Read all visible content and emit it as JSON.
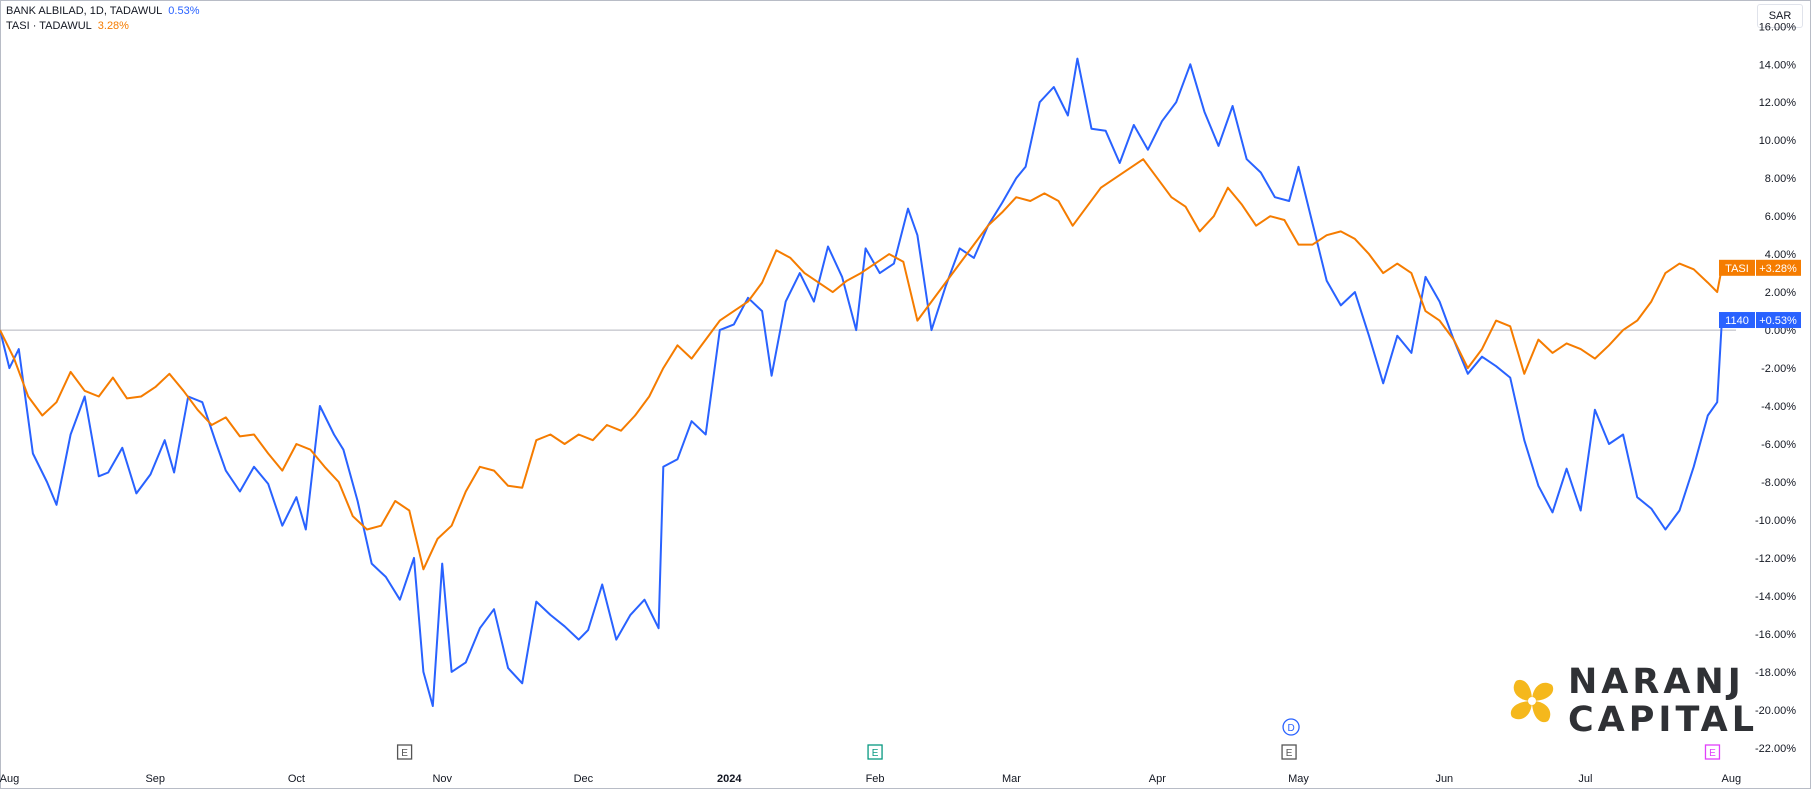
{
  "legend": {
    "series1_label": "BANK ALBILAD, 1D, TADAWUL",
    "series1_value": "0.53%",
    "series2_label": "TASI · TADAWUL",
    "series2_value": "3.28%"
  },
  "currency": "SAR",
  "brand": {
    "line1": "NARANJ",
    "line2": "CAPITAL"
  },
  "price_tags": {
    "tasi_name": "TASI",
    "tasi_value": "+3.28%",
    "bank_name": "1140",
    "bank_value": "+0.53%"
  },
  "event_markers": [
    {
      "label": "E",
      "date": "2023-10-24",
      "color": "#555555"
    },
    {
      "label": "E",
      "date": "2024-02-01",
      "color": "#089981"
    },
    {
      "label": "E",
      "date": "2024-04-29",
      "color": "#555555"
    },
    {
      "label": "D",
      "date": "2024-04-29",
      "color": "#2962ff"
    },
    {
      "label": "E",
      "date": "2024-07-28",
      "color": "#e040fb"
    }
  ],
  "colors": {
    "bank": "#2962ff",
    "tasi": "#f57c00",
    "zero_line": "#b2b5be"
  },
  "chart_data": {
    "type": "line",
    "xlabel": "",
    "ylabel": "",
    "ylim": [
      -23,
      17
    ],
    "y_ticks": [
      "16.00%",
      "14.00%",
      "12.00%",
      "10.00%",
      "8.00%",
      "6.00%",
      "4.00%",
      "2.00%",
      "0.00%",
      "-2.00%",
      "-4.00%",
      "-6.00%",
      "-8.00%",
      "-10.00%",
      "-12.00%",
      "-14.00%",
      "-16.00%",
      "-18.00%",
      "-20.00%",
      "-22.00%"
    ],
    "x_range": [
      "2023-07-30",
      "2024-08-02"
    ],
    "x_ticks": [
      {
        "label": "Aug",
        "date": "2023-08-01"
      },
      {
        "label": "Sep",
        "date": "2023-09-01"
      },
      {
        "label": "Oct",
        "date": "2023-10-01"
      },
      {
        "label": "Nov",
        "date": "2023-11-01"
      },
      {
        "label": "Dec",
        "date": "2023-12-01"
      },
      {
        "label": "2024",
        "date": "2024-01-01",
        "bold": true
      },
      {
        "label": "Feb",
        "date": "2024-02-01"
      },
      {
        "label": "Mar",
        "date": "2024-03-01"
      },
      {
        "label": "Apr",
        "date": "2024-04-01"
      },
      {
        "label": "May",
        "date": "2024-05-01"
      },
      {
        "label": "Jun",
        "date": "2024-06-01"
      },
      {
        "label": "Jul",
        "date": "2024-07-01"
      },
      {
        "label": "Aug",
        "date": "2024-08-01"
      }
    ],
    "grid": false,
    "series": [
      {
        "name": "BANK ALBILAD",
        "color": "#2962ff",
        "points": [
          [
            "2023-07-30",
            0.0
          ],
          [
            "2023-08-01",
            -2.0
          ],
          [
            "2023-08-03",
            -1.0
          ],
          [
            "2023-08-06",
            -6.5
          ],
          [
            "2023-08-09",
            -8.0
          ],
          [
            "2023-08-11",
            -9.2
          ],
          [
            "2023-08-14",
            -5.5
          ],
          [
            "2023-08-17",
            -3.5
          ],
          [
            "2023-08-20",
            -7.7
          ],
          [
            "2023-08-22",
            -7.5
          ],
          [
            "2023-08-25",
            -6.2
          ],
          [
            "2023-08-28",
            -8.6
          ],
          [
            "2023-08-31",
            -7.6
          ],
          [
            "2023-09-03",
            -5.8
          ],
          [
            "2023-09-05",
            -7.5
          ],
          [
            "2023-09-08",
            -3.5
          ],
          [
            "2023-09-11",
            -3.8
          ],
          [
            "2023-09-14",
            -6.0
          ],
          [
            "2023-09-16",
            -7.4
          ],
          [
            "2023-09-19",
            -8.5
          ],
          [
            "2023-09-22",
            -7.2
          ],
          [
            "2023-09-25",
            -8.1
          ],
          [
            "2023-09-28",
            -10.3
          ],
          [
            "2023-10-01",
            -8.8
          ],
          [
            "2023-10-03",
            -10.5
          ],
          [
            "2023-10-06",
            -4.0
          ],
          [
            "2023-10-09",
            -5.5
          ],
          [
            "2023-10-11",
            -6.3
          ],
          [
            "2023-10-14",
            -9.0
          ],
          [
            "2023-10-17",
            -12.3
          ],
          [
            "2023-10-20",
            -13.0
          ],
          [
            "2023-10-23",
            -14.2
          ],
          [
            "2023-10-26",
            -12.0
          ],
          [
            "2023-10-28",
            -18.0
          ],
          [
            "2023-10-30",
            -19.8
          ],
          [
            "2023-11-01",
            -12.3
          ],
          [
            "2023-11-03",
            -18.0
          ],
          [
            "2023-11-06",
            -17.5
          ],
          [
            "2023-11-09",
            -15.7
          ],
          [
            "2023-11-12",
            -14.7
          ],
          [
            "2023-11-15",
            -17.8
          ],
          [
            "2023-11-18",
            -18.6
          ],
          [
            "2023-11-21",
            -14.3
          ],
          [
            "2023-11-24",
            -15.0
          ],
          [
            "2023-11-27",
            -15.6
          ],
          [
            "2023-11-30",
            -16.3
          ],
          [
            "2023-12-02",
            -15.8
          ],
          [
            "2023-12-05",
            -13.4
          ],
          [
            "2023-12-08",
            -16.3
          ],
          [
            "2023-12-11",
            -15.0
          ],
          [
            "2023-12-14",
            -14.2
          ],
          [
            "2023-12-17",
            -15.7
          ],
          [
            "2023-12-18",
            -7.2
          ],
          [
            "2023-12-21",
            -6.8
          ],
          [
            "2023-12-24",
            -4.8
          ],
          [
            "2023-12-27",
            -5.5
          ],
          [
            "2023-12-30",
            0.0
          ],
          [
            "2024-01-02",
            0.3
          ],
          [
            "2024-01-05",
            1.7
          ],
          [
            "2024-01-08",
            1.0
          ],
          [
            "2024-01-10",
            -2.4
          ],
          [
            "2024-01-13",
            1.5
          ],
          [
            "2024-01-16",
            3.0
          ],
          [
            "2024-01-19",
            1.5
          ],
          [
            "2024-01-22",
            4.4
          ],
          [
            "2024-01-25",
            2.8
          ],
          [
            "2024-01-28",
            0.0
          ],
          [
            "2024-01-30",
            4.3
          ],
          [
            "2024-02-02",
            3.0
          ],
          [
            "2024-02-05",
            3.5
          ],
          [
            "2024-02-08",
            6.4
          ],
          [
            "2024-02-10",
            5.0
          ],
          [
            "2024-02-13",
            0.0
          ],
          [
            "2024-02-16",
            2.3
          ],
          [
            "2024-02-19",
            4.3
          ],
          [
            "2024-02-22",
            3.8
          ],
          [
            "2024-02-25",
            5.5
          ],
          [
            "2024-02-28",
            6.7
          ],
          [
            "2024-03-02",
            8.0
          ],
          [
            "2024-03-04",
            8.6
          ],
          [
            "2024-03-07",
            12.0
          ],
          [
            "2024-03-10",
            12.8
          ],
          [
            "2024-03-13",
            11.3
          ],
          [
            "2024-03-15",
            14.3
          ],
          [
            "2024-03-18",
            10.6
          ],
          [
            "2024-03-21",
            10.5
          ],
          [
            "2024-03-24",
            8.8
          ],
          [
            "2024-03-27",
            10.8
          ],
          [
            "2024-03-30",
            9.5
          ],
          [
            "2024-04-02",
            11.0
          ],
          [
            "2024-04-05",
            12.0
          ],
          [
            "2024-04-08",
            14.0
          ],
          [
            "2024-04-11",
            11.5
          ],
          [
            "2024-04-14",
            9.7
          ],
          [
            "2024-04-17",
            11.8
          ],
          [
            "2024-04-20",
            9.0
          ],
          [
            "2024-04-23",
            8.3
          ],
          [
            "2024-04-26",
            7.0
          ],
          [
            "2024-04-29",
            6.8
          ],
          [
            "2024-05-01",
            8.6
          ],
          [
            "2024-05-04",
            5.6
          ],
          [
            "2024-05-07",
            2.6
          ],
          [
            "2024-05-10",
            1.3
          ],
          [
            "2024-05-13",
            2.0
          ],
          [
            "2024-05-16",
            -0.3
          ],
          [
            "2024-05-19",
            -2.8
          ],
          [
            "2024-05-22",
            -0.3
          ],
          [
            "2024-05-25",
            -1.2
          ],
          [
            "2024-05-28",
            2.8
          ],
          [
            "2024-05-31",
            1.5
          ],
          [
            "2024-06-03",
            -0.5
          ],
          [
            "2024-06-06",
            -2.3
          ],
          [
            "2024-06-09",
            -1.4
          ],
          [
            "2024-06-12",
            -1.9
          ],
          [
            "2024-06-15",
            -2.5
          ],
          [
            "2024-06-18",
            -5.8
          ],
          [
            "2024-06-21",
            -8.2
          ],
          [
            "2024-06-24",
            -9.6
          ],
          [
            "2024-06-27",
            -7.3
          ],
          [
            "2024-06-30",
            -9.5
          ],
          [
            "2024-07-03",
            -4.2
          ],
          [
            "2024-07-06",
            -6.0
          ],
          [
            "2024-07-09",
            -5.5
          ],
          [
            "2024-07-12",
            -8.8
          ],
          [
            "2024-07-15",
            -9.4
          ],
          [
            "2024-07-18",
            -10.5
          ],
          [
            "2024-07-21",
            -9.5
          ],
          [
            "2024-07-24",
            -7.2
          ],
          [
            "2024-07-27",
            -4.5
          ],
          [
            "2024-07-29",
            -3.8
          ],
          [
            "2024-07-30",
            0.53
          ]
        ]
      },
      {
        "name": "TASI",
        "color": "#f57c00",
        "points": [
          [
            "2023-07-30",
            0.0
          ],
          [
            "2023-08-02",
            -1.5
          ],
          [
            "2023-08-05",
            -3.5
          ],
          [
            "2023-08-08",
            -4.5
          ],
          [
            "2023-08-11",
            -3.8
          ],
          [
            "2023-08-14",
            -2.2
          ],
          [
            "2023-08-17",
            -3.2
          ],
          [
            "2023-08-20",
            -3.5
          ],
          [
            "2023-08-23",
            -2.5
          ],
          [
            "2023-08-26",
            -3.6
          ],
          [
            "2023-08-29",
            -3.5
          ],
          [
            "2023-09-01",
            -3.0
          ],
          [
            "2023-09-04",
            -2.3
          ],
          [
            "2023-09-07",
            -3.2
          ],
          [
            "2023-09-10",
            -4.2
          ],
          [
            "2023-09-13",
            -5.0
          ],
          [
            "2023-09-16",
            -4.6
          ],
          [
            "2023-09-19",
            -5.6
          ],
          [
            "2023-09-22",
            -5.5
          ],
          [
            "2023-09-25",
            -6.5
          ],
          [
            "2023-09-28",
            -7.4
          ],
          [
            "2023-10-01",
            -6.0
          ],
          [
            "2023-10-04",
            -6.3
          ],
          [
            "2023-10-07",
            -7.2
          ],
          [
            "2023-10-10",
            -8.0
          ],
          [
            "2023-10-13",
            -9.8
          ],
          [
            "2023-10-16",
            -10.5
          ],
          [
            "2023-10-19",
            -10.3
          ],
          [
            "2023-10-22",
            -9.0
          ],
          [
            "2023-10-25",
            -9.5
          ],
          [
            "2023-10-28",
            -12.6
          ],
          [
            "2023-10-31",
            -11.0
          ],
          [
            "2023-11-03",
            -10.3
          ],
          [
            "2023-11-06",
            -8.5
          ],
          [
            "2023-11-09",
            -7.2
          ],
          [
            "2023-11-12",
            -7.4
          ],
          [
            "2023-11-15",
            -8.2
          ],
          [
            "2023-11-18",
            -8.3
          ],
          [
            "2023-11-21",
            -5.8
          ],
          [
            "2023-11-24",
            -5.5
          ],
          [
            "2023-11-27",
            -6.0
          ],
          [
            "2023-11-30",
            -5.5
          ],
          [
            "2023-12-03",
            -5.8
          ],
          [
            "2023-12-06",
            -5.0
          ],
          [
            "2023-12-09",
            -5.3
          ],
          [
            "2023-12-12",
            -4.5
          ],
          [
            "2023-12-15",
            -3.5
          ],
          [
            "2023-12-18",
            -2.0
          ],
          [
            "2023-12-21",
            -0.8
          ],
          [
            "2023-12-24",
            -1.5
          ],
          [
            "2023-12-27",
            -0.5
          ],
          [
            "2023-12-30",
            0.5
          ],
          [
            "2024-01-02",
            1.0
          ],
          [
            "2024-01-05",
            1.5
          ],
          [
            "2024-01-08",
            2.5
          ],
          [
            "2024-01-11",
            4.2
          ],
          [
            "2024-01-14",
            3.8
          ],
          [
            "2024-01-17",
            3.0
          ],
          [
            "2024-01-20",
            2.5
          ],
          [
            "2024-01-23",
            2.0
          ],
          [
            "2024-01-26",
            2.6
          ],
          [
            "2024-01-29",
            3.0
          ],
          [
            "2024-02-01",
            3.5
          ],
          [
            "2024-02-04",
            4.0
          ],
          [
            "2024-02-07",
            3.6
          ],
          [
            "2024-02-10",
            0.5
          ],
          [
            "2024-02-13",
            1.5
          ],
          [
            "2024-02-16",
            2.5
          ],
          [
            "2024-02-19",
            3.5
          ],
          [
            "2024-02-22",
            4.5
          ],
          [
            "2024-02-25",
            5.5
          ],
          [
            "2024-02-28",
            6.2
          ],
          [
            "2024-03-02",
            7.0
          ],
          [
            "2024-03-05",
            6.8
          ],
          [
            "2024-03-08",
            7.2
          ],
          [
            "2024-03-11",
            6.8
          ],
          [
            "2024-03-14",
            5.5
          ],
          [
            "2024-03-17",
            6.5
          ],
          [
            "2024-03-20",
            7.5
          ],
          [
            "2024-03-23",
            8.0
          ],
          [
            "2024-03-26",
            8.5
          ],
          [
            "2024-03-29",
            9.0
          ],
          [
            "2024-04-01",
            8.0
          ],
          [
            "2024-04-04",
            7.0
          ],
          [
            "2024-04-07",
            6.5
          ],
          [
            "2024-04-10",
            5.2
          ],
          [
            "2024-04-13",
            6.0
          ],
          [
            "2024-04-16",
            7.5
          ],
          [
            "2024-04-19",
            6.6
          ],
          [
            "2024-04-22",
            5.5
          ],
          [
            "2024-04-25",
            6.0
          ],
          [
            "2024-04-28",
            5.8
          ],
          [
            "2024-05-01",
            4.5
          ],
          [
            "2024-05-04",
            4.5
          ],
          [
            "2024-05-07",
            5.0
          ],
          [
            "2024-05-10",
            5.2
          ],
          [
            "2024-05-13",
            4.8
          ],
          [
            "2024-05-16",
            4.0
          ],
          [
            "2024-05-19",
            3.0
          ],
          [
            "2024-05-22",
            3.5
          ],
          [
            "2024-05-25",
            3.0
          ],
          [
            "2024-05-28",
            1.0
          ],
          [
            "2024-05-31",
            0.5
          ],
          [
            "2024-06-03",
            -0.5
          ],
          [
            "2024-06-06",
            -2.0
          ],
          [
            "2024-06-09",
            -1.0
          ],
          [
            "2024-06-12",
            0.5
          ],
          [
            "2024-06-15",
            0.2
          ],
          [
            "2024-06-18",
            -2.3
          ],
          [
            "2024-06-21",
            -0.5
          ],
          [
            "2024-06-24",
            -1.2
          ],
          [
            "2024-06-27",
            -0.7
          ],
          [
            "2024-06-30",
            -1.0
          ],
          [
            "2024-07-03",
            -1.5
          ],
          [
            "2024-07-06",
            -0.8
          ],
          [
            "2024-07-09",
            0.0
          ],
          [
            "2024-07-12",
            0.5
          ],
          [
            "2024-07-15",
            1.5
          ],
          [
            "2024-07-18",
            3.0
          ],
          [
            "2024-07-21",
            3.5
          ],
          [
            "2024-07-24",
            3.2
          ],
          [
            "2024-07-27",
            2.5
          ],
          [
            "2024-07-29",
            2.0
          ],
          [
            "2024-07-30",
            3.28
          ]
        ]
      }
    ]
  }
}
